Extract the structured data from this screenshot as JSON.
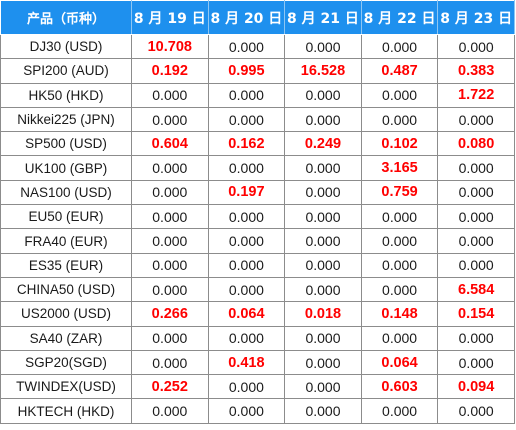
{
  "table": {
    "headers": [
      "产品（币种）",
      "8 月 19 日",
      "8 月 20 日",
      "8 月 21 日",
      "8 月 22 日",
      "8 月 23 日"
    ],
    "highlight_color": "#ff0000",
    "header_bg": "#1e90ee",
    "rows": [
      {
        "product": "DJ30 (USD)",
        "values": [
          "10.708",
          "0.000",
          "0.000",
          "0.000",
          "0.000"
        ],
        "highlight": [
          true,
          false,
          false,
          false,
          false
        ]
      },
      {
        "product": "SPI200 (AUD)",
        "values": [
          "0.192",
          "0.995",
          "16.528",
          "0.487",
          "0.383"
        ],
        "highlight": [
          true,
          true,
          true,
          true,
          true
        ]
      },
      {
        "product": "HK50 (HKD)",
        "values": [
          "0.000",
          "0.000",
          "0.000",
          "0.000",
          "1.722"
        ],
        "highlight": [
          false,
          false,
          false,
          false,
          true
        ]
      },
      {
        "product": "Nikkei225 (JPN)",
        "values": [
          "0.000",
          "0.000",
          "0.000",
          "0.000",
          "0.000"
        ],
        "highlight": [
          false,
          false,
          false,
          false,
          false
        ]
      },
      {
        "product": "SP500 (USD)",
        "values": [
          "0.604",
          "0.162",
          "0.249",
          "0.102",
          "0.080"
        ],
        "highlight": [
          true,
          true,
          true,
          true,
          true
        ]
      },
      {
        "product": "UK100 (GBP)",
        "values": [
          "0.000",
          "0.000",
          "0.000",
          "3.165",
          "0.000"
        ],
        "highlight": [
          false,
          false,
          false,
          true,
          false
        ]
      },
      {
        "product": "NAS100 (USD)",
        "values": [
          "0.000",
          "0.197",
          "0.000",
          "0.759",
          "0.000"
        ],
        "highlight": [
          false,
          true,
          false,
          true,
          false
        ]
      },
      {
        "product": "EU50 (EUR)",
        "values": [
          "0.000",
          "0.000",
          "0.000",
          "0.000",
          "0.000"
        ],
        "highlight": [
          false,
          false,
          false,
          false,
          false
        ]
      },
      {
        "product": "FRA40 (EUR)",
        "values": [
          "0.000",
          "0.000",
          "0.000",
          "0.000",
          "0.000"
        ],
        "highlight": [
          false,
          false,
          false,
          false,
          false
        ]
      },
      {
        "product": "ES35 (EUR)",
        "values": [
          "0.000",
          "0.000",
          "0.000",
          "0.000",
          "0.000"
        ],
        "highlight": [
          false,
          false,
          false,
          false,
          false
        ]
      },
      {
        "product": "CHINA50 (USD)",
        "values": [
          "0.000",
          "0.000",
          "0.000",
          "0.000",
          "6.584"
        ],
        "highlight": [
          false,
          false,
          false,
          false,
          true
        ]
      },
      {
        "product": "US2000 (USD)",
        "values": [
          "0.266",
          "0.064",
          "0.018",
          "0.148",
          "0.154"
        ],
        "highlight": [
          true,
          true,
          true,
          true,
          true
        ]
      },
      {
        "product": "SA40 (ZAR)",
        "values": [
          "0.000",
          "0.000",
          "0.000",
          "0.000",
          "0.000"
        ],
        "highlight": [
          false,
          false,
          false,
          false,
          false
        ]
      },
      {
        "product": "SGP20(SGD)",
        "values": [
          "0.000",
          "0.418",
          "0.000",
          "0.064",
          "0.000"
        ],
        "highlight": [
          false,
          true,
          false,
          true,
          false
        ]
      },
      {
        "product": "TWINDEX(USD)",
        "values": [
          "0.252",
          "0.000",
          "0.000",
          "0.603",
          "0.094"
        ],
        "highlight": [
          true,
          false,
          false,
          true,
          true
        ]
      },
      {
        "product": "HKTECH (HKD)",
        "values": [
          "0.000",
          "0.000",
          "0.000",
          "0.000",
          "0.000"
        ],
        "highlight": [
          false,
          false,
          false,
          false,
          false
        ]
      }
    ]
  }
}
